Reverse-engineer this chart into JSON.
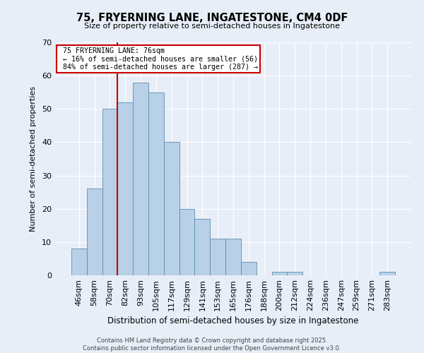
{
  "title": "75, FRYERNING LANE, INGATESTONE, CM4 0DF",
  "subtitle": "Size of property relative to semi-detached houses in Ingatestone",
  "xlabel": "Distribution of semi-detached houses by size in Ingatestone",
  "ylabel": "Number of semi-detached properties",
  "footer_line1": "Contains HM Land Registry data © Crown copyright and database right 2025.",
  "footer_line2": "Contains public sector information licensed under the Open Government Licence v3.0.",
  "categories": [
    "46sqm",
    "58sqm",
    "70sqm",
    "82sqm",
    "93sqm",
    "105sqm",
    "117sqm",
    "129sqm",
    "141sqm",
    "153sqm",
    "165sqm",
    "176sqm",
    "188sqm",
    "200sqm",
    "212sqm",
    "224sqm",
    "236sqm",
    "247sqm",
    "259sqm",
    "271sqm",
    "283sqm"
  ],
  "values": [
    8,
    26,
    50,
    52,
    58,
    55,
    40,
    20,
    17,
    11,
    11,
    4,
    0,
    1,
    1,
    0,
    0,
    0,
    0,
    0,
    1
  ],
  "bar_color": "#b8d0e8",
  "bar_edge_color": "#5a8fa8",
  "ylim": [
    0,
    70
  ],
  "yticks": [
    0,
    10,
    20,
    30,
    40,
    50,
    60,
    70
  ],
  "property_label": "75 FRYERNING LANE: 76sqm",
  "pct_smaller": 16,
  "pct_larger": 84,
  "count_smaller": 56,
  "count_larger": 287,
  "vline_bar_index": 2.5,
  "annotation_box_color": "#cc0000",
  "background_color": "#e8eef8",
  "grid_color": "#ffffff"
}
